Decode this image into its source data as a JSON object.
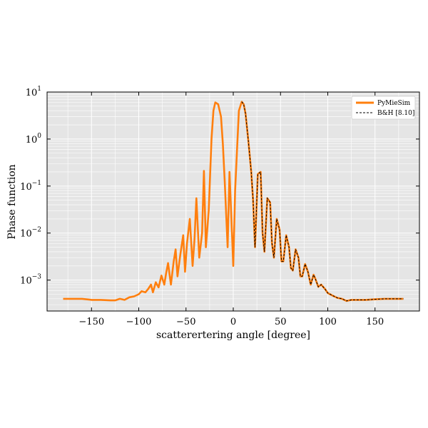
{
  "chart_data": {
    "type": "line",
    "title": "",
    "xlabel": "scatterertering angle [degree]",
    "ylabel": "Phase function",
    "xlim": [
      -197,
      197
    ],
    "ylim": [
      0.00022,
      10
    ],
    "yscale": "log",
    "grid": true,
    "legend_placement": "top-right",
    "background_color": "#e5e5e5",
    "x_ticks": [
      -150,
      -100,
      -50,
      0,
      50,
      100,
      150
    ],
    "x_tick_labels": [
      "−150",
      "−100",
      "−50",
      "0",
      "50",
      "100",
      "150"
    ],
    "y_ticks": [
      0.001,
      0.01,
      0.1,
      1,
      10
    ],
    "y_tick_labels": [
      {
        "base": "10",
        "exp": "−3"
      },
      {
        "base": "10",
        "exp": "−2"
      },
      {
        "base": "10",
        "exp": "−1"
      },
      {
        "base": "10",
        "exp": "0"
      },
      {
        "base": "10",
        "exp": "1"
      }
    ],
    "series": [
      {
        "name": "PyMieSim",
        "color": "#ff7f0e",
        "style": "solid",
        "x": [
          -180,
          -160,
          -150,
          -140,
          -130,
          -125,
          -120,
          -115,
          -110,
          -105,
          -100,
          -97,
          -93,
          -90,
          -87,
          -85,
          -82,
          -79,
          -76,
          -73,
          -71,
          -69,
          -66,
          -63,
          -61,
          -59,
          -56,
          -53,
          -51,
          -49,
          -46,
          -43,
          -41,
          -39,
          -36,
          -33,
          -31,
          -29,
          -26,
          -23,
          -21,
          -19,
          -16,
          -13,
          -11,
          -9,
          -6,
          -4,
          -2,
          0,
          2,
          4,
          6,
          9,
          11,
          13,
          16,
          19,
          21,
          23,
          26,
          29,
          31,
          33,
          36,
          39,
          41,
          43,
          46,
          49,
          51,
          53,
          56,
          59,
          61,
          63,
          66,
          69,
          71,
          73,
          76,
          79,
          82,
          85,
          87,
          90,
          93,
          97,
          100,
          105,
          110,
          115,
          120,
          125,
          130,
          140,
          150,
          160,
          180
        ],
        "values": [
          0.0004,
          0.0004,
          0.00038,
          0.00038,
          0.00037,
          0.00037,
          0.0004,
          0.00038,
          0.00043,
          0.00045,
          0.0005,
          0.00058,
          0.00055,
          0.00065,
          0.0008,
          0.00055,
          0.0009,
          0.0007,
          0.00125,
          0.0008,
          0.0014,
          0.0023,
          0.0008,
          0.0025,
          0.0045,
          0.0012,
          0.0035,
          0.009,
          0.0015,
          0.006,
          0.02,
          0.002,
          0.0075,
          0.055,
          0.003,
          0.01,
          0.21,
          0.005,
          0.03,
          1.0,
          4.0,
          6.0,
          5.5,
          3.0,
          0.8,
          0.12,
          0.005,
          0.2,
          0.02,
          0.002,
          0.08,
          0.6,
          4.0,
          6.2,
          5.5,
          3.5,
          0.9,
          0.2,
          0.05,
          0.005,
          0.18,
          0.2,
          0.01,
          0.004,
          0.055,
          0.045,
          0.006,
          0.003,
          0.02,
          0.012,
          0.0025,
          0.0025,
          0.009,
          0.005,
          0.0018,
          0.0016,
          0.0045,
          0.003,
          0.0012,
          0.0012,
          0.0022,
          0.0015,
          0.0008,
          0.0013,
          0.00105,
          0.00072,
          0.0008,
          0.00065,
          0.00053,
          0.00047,
          0.00042,
          0.0004,
          0.00036,
          0.00038,
          0.00038,
          0.00038,
          0.00039,
          0.0004,
          0.0004
        ]
      },
      {
        "name": "B&H [8.10]",
        "color": "#000000",
        "style": "dashed",
        "x": [],
        "values": []
      }
    ]
  }
}
